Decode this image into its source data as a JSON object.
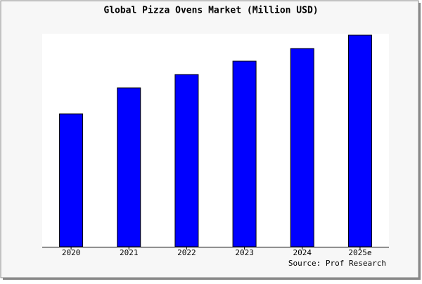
{
  "chart_data": {
    "type": "bar",
    "title": "Global Pizza Ovens Market (Million USD)",
    "categories": [
      "2020",
      "2021",
      "2022",
      "2023",
      "2024",
      "2025e"
    ],
    "values": [
      189,
      226,
      245,
      264,
      282,
      301
    ],
    "color": "#0000ff",
    "ylim": [
      0,
      303
    ],
    "source": "Source: Prof Research"
  }
}
